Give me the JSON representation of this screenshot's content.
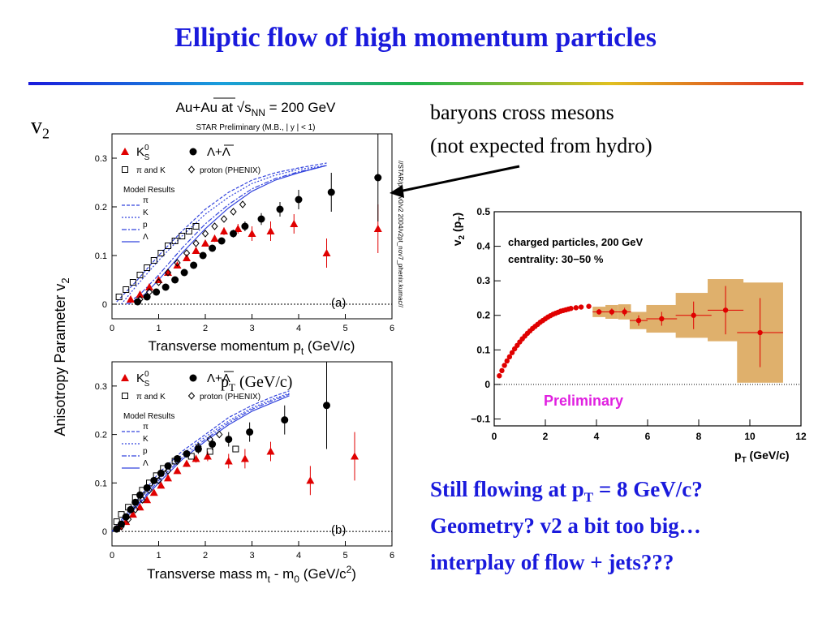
{
  "slide": {
    "title": "Elliptic flow of high momentum particles",
    "v2_label": "v",
    "v2_sub": "2",
    "note_line1": "baryons cross mesons",
    "note_line2": "(not expected from hydro)",
    "pt_label_main": "p",
    "pt_label_sub": "T",
    "pt_label_unit": " (GeV/c)",
    "bottom_line1_a": "Still flowing at p",
    "bottom_line1_sub": "T",
    "bottom_line1_b": " = 8 GeV/c?",
    "bottom_line2": "Geometry? v2 a bit too big…",
    "bottom_line3": "interplay of flow + jets???",
    "colors": {
      "title": "#1a1adc",
      "bottom_text": "#1a1adc"
    }
  },
  "chart_data": [
    {
      "type": "scatter",
      "panel": "(a)",
      "title": "Au+Au at √s",
      "title_sub": "NN",
      "title_tail": " = 200 GeV",
      "subtitle": "STAR Preliminary (M.B., | y | < 1)",
      "xlabel": "Transverse momentum p",
      "xlabel_sub": "t",
      "xlabel_tail": " (GeV/c)",
      "ylabel": "Anisotropy Parameter v",
      "ylabel_sub": "2",
      "xlim": [
        0,
        6
      ],
      "ylim": [
        -0.03,
        0.35
      ],
      "xticks": [
        0,
        1,
        2,
        3,
        4,
        5,
        6
      ],
      "yticks": [
        0,
        0.1,
        0.2,
        0.3
      ],
      "side_label": "//STAR/pwg/v0/v2 2004/v2pt_nov7_phenix.kumac//",
      "legend": {
        "k0s": "K",
        "k0s_sup": "0",
        "k0s_sub": "S",
        "lambda": "Λ+Λ",
        "pik": "π and K",
        "proton": "proton (PHENIX)",
        "model_title": "Model Results",
        "models": [
          "π",
          "K",
          "p",
          "Λ"
        ]
      },
      "series": [
        {
          "name": "K",
          "marker": "triangle",
          "color": "#e00000",
          "x": [
            0.4,
            0.6,
            0.8,
            1.0,
            1.2,
            1.4,
            1.6,
            1.8,
            2.0,
            2.2,
            2.4,
            2.7,
            3.0,
            3.4,
            3.9,
            4.6,
            5.7
          ],
          "y": [
            0.01,
            0.02,
            0.035,
            0.05,
            0.065,
            0.08,
            0.095,
            0.11,
            0.125,
            0.135,
            0.15,
            0.155,
            0.145,
            0.15,
            0.165,
            0.105,
            0.155
          ],
          "err": [
            0.003,
            0.003,
            0.003,
            0.004,
            0.004,
            0.004,
            0.005,
            0.005,
            0.006,
            0.007,
            0.008,
            0.01,
            0.015,
            0.02,
            0.02,
            0.03,
            0.05
          ]
        },
        {
          "name": "Λ+Λ",
          "marker": "circle",
          "color": "#000000",
          "x": [
            0.55,
            0.75,
            0.95,
            1.15,
            1.35,
            1.55,
            1.75,
            1.95,
            2.15,
            2.35,
            2.6,
            2.85,
            3.2,
            3.6,
            4.0,
            4.7,
            5.7
          ],
          "y": [
            0.005,
            0.015,
            0.025,
            0.035,
            0.05,
            0.065,
            0.08,
            0.1,
            0.115,
            0.13,
            0.145,
            0.16,
            0.175,
            0.195,
            0.215,
            0.23,
            0.26
          ],
          "err": [
            0.003,
            0.003,
            0.003,
            0.004,
            0.004,
            0.004,
            0.005,
            0.005,
            0.006,
            0.007,
            0.008,
            0.01,
            0.012,
            0.015,
            0.02,
            0.04,
            0.09
          ]
        },
        {
          "name": "π and K",
          "marker": "open-square",
          "color": "#000000",
          "x": [
            0.15,
            0.3,
            0.45,
            0.6,
            0.75,
            0.9,
            1.05,
            1.2,
            1.35,
            1.5,
            1.65,
            1.8
          ],
          "y": [
            0.015,
            0.03,
            0.045,
            0.06,
            0.075,
            0.09,
            0.105,
            0.12,
            0.13,
            0.14,
            0.15,
            0.16
          ]
        },
        {
          "name": "proton (PHENIX)",
          "marker": "open-diamond",
          "color": "#000000",
          "x": [
            0.6,
            0.8,
            1.0,
            1.2,
            1.4,
            1.6,
            1.8,
            2.0,
            2.2,
            2.4,
            2.6,
            2.8
          ],
          "y": [
            0.01,
            0.025,
            0.045,
            0.065,
            0.085,
            0.105,
            0.125,
            0.145,
            0.16,
            0.175,
            0.19,
            0.205
          ]
        }
      ],
      "model_curves": [
        {
          "name": "π",
          "x": [
            0.1,
            0.5,
            1,
            1.5,
            2,
            2.5,
            3,
            3.5,
            4,
            4.6
          ],
          "y": [
            0.005,
            0.045,
            0.1,
            0.15,
            0.195,
            0.23,
            0.255,
            0.27,
            0.28,
            0.29
          ]
        },
        {
          "name": "K",
          "x": [
            0.2,
            0.5,
            1,
            1.5,
            2,
            2.5,
            3,
            3.5,
            4,
            4.6
          ],
          "y": [
            0.0,
            0.035,
            0.09,
            0.14,
            0.185,
            0.22,
            0.248,
            0.265,
            0.277,
            0.285
          ]
        },
        {
          "name": "p",
          "x": [
            0.3,
            0.6,
            1,
            1.5,
            2,
            2.5,
            3,
            3.5,
            4,
            4.6
          ],
          "y": [
            0.0,
            0.02,
            0.06,
            0.115,
            0.165,
            0.205,
            0.237,
            0.258,
            0.272,
            0.285
          ]
        },
        {
          "name": "Λ",
          "x": [
            0.35,
            0.7,
            1,
            1.5,
            2,
            2.5,
            3,
            3.5,
            4,
            4.6
          ],
          "y": [
            0.0,
            0.02,
            0.05,
            0.105,
            0.155,
            0.198,
            0.232,
            0.255,
            0.27,
            0.285
          ]
        }
      ]
    },
    {
      "type": "scatter",
      "panel": "(b)",
      "xlabel": "Transverse mass m",
      "xlabel_sub": "t",
      "xlabel_mid": " - m",
      "xlabel_sub2": "0",
      "xlabel_tail": " (GeV/c",
      "xlabel_sup": "2",
      "xlabel_end": ")",
      "xlim": [
        0,
        6
      ],
      "ylim": [
        -0.03,
        0.35
      ],
      "xticks": [
        0,
        1,
        2,
        3,
        4,
        5,
        6
      ],
      "yticks": [
        0,
        0.1,
        0.2,
        0.3
      ],
      "legend": {
        "k0s": "K",
        "k0s_sup": "0",
        "k0s_sub": "S",
        "lambda": "Λ+Λ",
        "pik": "π and K",
        "proton": "proton (PHENIX)",
        "model_title": "Model Results",
        "models": [
          "π",
          "K",
          "p",
          "Λ"
        ]
      },
      "series": [
        {
          "name": "K",
          "marker": "triangle",
          "color": "#e00000",
          "x": [
            0.15,
            0.3,
            0.45,
            0.6,
            0.75,
            0.9,
            1.05,
            1.2,
            1.4,
            1.6,
            1.8,
            2.05,
            2.5,
            2.85,
            3.4,
            4.25,
            5.2
          ],
          "y": [
            0.01,
            0.02,
            0.035,
            0.05,
            0.065,
            0.08,
            0.095,
            0.11,
            0.125,
            0.14,
            0.15,
            0.155,
            0.145,
            0.15,
            0.165,
            0.105,
            0.155
          ],
          "err": [
            0.003,
            0.003,
            0.003,
            0.004,
            0.004,
            0.004,
            0.005,
            0.005,
            0.006,
            0.007,
            0.008,
            0.01,
            0.015,
            0.02,
            0.02,
            0.03,
            0.05
          ]
        },
        {
          "name": "Λ+Λ",
          "marker": "circle",
          "color": "#000000",
          "x": [
            0.1,
            0.2,
            0.3,
            0.4,
            0.5,
            0.6,
            0.75,
            0.9,
            1.05,
            1.2,
            1.4,
            1.6,
            1.85,
            2.15,
            2.5,
            2.95,
            3.7,
            4.6
          ],
          "y": [
            0.005,
            0.015,
            0.03,
            0.045,
            0.06,
            0.075,
            0.09,
            0.105,
            0.12,
            0.135,
            0.15,
            0.16,
            0.17,
            0.18,
            0.19,
            0.205,
            0.23,
            0.26
          ],
          "err": [
            0.003,
            0.003,
            0.003,
            0.004,
            0.004,
            0.004,
            0.005,
            0.005,
            0.006,
            0.006,
            0.007,
            0.008,
            0.01,
            0.012,
            0.015,
            0.02,
            0.03,
            0.09
          ]
        },
        {
          "name": "π and K",
          "marker": "open-square",
          "color": "#000000",
          "x": [
            0.1,
            0.2,
            0.35,
            0.5,
            0.65,
            0.8,
            0.95,
            1.1,
            1.35,
            1.7,
            2.1,
            2.65
          ],
          "y": [
            0.02,
            0.035,
            0.05,
            0.07,
            0.085,
            0.1,
            0.115,
            0.13,
            0.145,
            0.155,
            0.165,
            0.17
          ]
        },
        {
          "name": "proton (PHENIX)",
          "marker": "open-diamond",
          "color": "#000000",
          "x": [
            0.2,
            0.35,
            0.5,
            0.65,
            0.8,
            1.0,
            1.2,
            1.4,
            1.6,
            1.85,
            2.1,
            2.3
          ],
          "y": [
            0.01,
            0.025,
            0.045,
            0.065,
            0.085,
            0.105,
            0.125,
            0.145,
            0.16,
            0.175,
            0.19,
            0.2
          ]
        }
      ],
      "model_curves": [
        {
          "name": "π",
          "x": [
            0,
            0.5,
            1,
            1.5,
            2,
            2.5,
            3,
            3.5,
            3.8
          ],
          "y": [
            0.0,
            0.06,
            0.12,
            0.165,
            0.2,
            0.235,
            0.26,
            0.28,
            0.29
          ]
        },
        {
          "name": "K",
          "x": [
            0,
            0.5,
            1,
            1.5,
            2,
            2.5,
            3,
            3.5,
            3.8
          ],
          "y": [
            0.0,
            0.055,
            0.11,
            0.158,
            0.195,
            0.228,
            0.255,
            0.275,
            0.285
          ]
        },
        {
          "name": "p",
          "x": [
            0,
            0.5,
            1,
            1.5,
            2,
            2.5,
            3,
            3.5,
            3.8
          ],
          "y": [
            0.0,
            0.05,
            0.105,
            0.152,
            0.19,
            0.224,
            0.252,
            0.272,
            0.283
          ]
        },
        {
          "name": "Λ",
          "x": [
            0,
            0.5,
            1,
            1.5,
            2,
            2.5,
            3,
            3.5,
            3.8
          ],
          "y": [
            0.0,
            0.048,
            0.1,
            0.148,
            0.186,
            0.22,
            0.248,
            0.268,
            0.28
          ]
        }
      ]
    },
    {
      "type": "scatter",
      "title": "charged particles, 200 GeV",
      "subtitle": "centrality: 30−50 %",
      "annotation": "Preliminary",
      "annotation_color": "#e020e0",
      "xlabel": "p",
      "xlabel_sub": "T",
      "xlabel_tail": " (GeV/c)",
      "ylabel": "v",
      "ylabel_sub": "2",
      "ylabel_tail": " (p",
      "ylabel_sub2": "T",
      "ylabel_end": ")",
      "xlim": [
        0,
        12
      ],
      "ylim": [
        -0.12,
        0.5
      ],
      "xticks": [
        0,
        2,
        4,
        6,
        8,
        10,
        12
      ],
      "yticks": [
        -0.1,
        0,
        0.1,
        0.2,
        0.3,
        0.4,
        0.5
      ],
      "ytick_labels": [
        "−0.1",
        "0",
        "0.1",
        "0.2",
        "0.3",
        "0.4",
        "0.5"
      ],
      "series": [
        {
          "name": "",
          "marker": "circle",
          "color": "#e00000",
          "x": [
            0.2,
            0.3,
            0.4,
            0.5,
            0.6,
            0.7,
            0.8,
            0.9,
            1.0,
            1.1,
            1.2,
            1.3,
            1.4,
            1.5,
            1.6,
            1.7,
            1.8,
            1.9,
            2.0,
            2.1,
            2.2,
            2.3,
            2.4,
            2.5,
            2.6,
            2.7,
            2.8,
            2.9,
            3.0,
            3.2,
            3.4,
            3.7,
            4.1,
            4.6,
            5.1,
            5.65,
            6.55,
            7.8,
            9.05,
            10.4
          ],
          "y": [
            0.025,
            0.04,
            0.055,
            0.068,
            0.08,
            0.092,
            0.103,
            0.113,
            0.123,
            0.132,
            0.14,
            0.148,
            0.155,
            0.162,
            0.168,
            0.174,
            0.18,
            0.185,
            0.19,
            0.195,
            0.199,
            0.203,
            0.206,
            0.209,
            0.212,
            0.214,
            0.216,
            0.218,
            0.22,
            0.222,
            0.224,
            0.226,
            0.21,
            0.21,
            0.21,
            0.185,
            0.19,
            0.2,
            0.215,
            0.15
          ],
          "xerr": [
            0,
            0,
            0,
            0,
            0,
            0,
            0,
            0,
            0,
            0,
            0,
            0,
            0,
            0,
            0,
            0,
            0,
            0,
            0,
            0,
            0,
            0,
            0,
            0,
            0,
            0,
            0,
            0,
            0,
            0,
            0,
            0,
            0.25,
            0.25,
            0.25,
            0.35,
            0.6,
            0.7,
            0.7,
            0.9
          ],
          "err": [
            0.003,
            0.003,
            0.003,
            0.003,
            0.003,
            0.003,
            0.003,
            0.003,
            0.003,
            0.003,
            0.003,
            0.003,
            0.003,
            0.003,
            0.003,
            0.003,
            0.003,
            0.003,
            0.003,
            0.003,
            0.003,
            0.003,
            0.003,
            0.003,
            0.003,
            0.003,
            0.003,
            0.003,
            0.003,
            0.004,
            0.005,
            0.007,
            0.008,
            0.01,
            0.012,
            0.015,
            0.02,
            0.04,
            0.07,
            0.1
          ],
          "sys": [
            0,
            0,
            0,
            0,
            0,
            0,
            0,
            0,
            0,
            0,
            0,
            0,
            0,
            0,
            0,
            0,
            0,
            0,
            0,
            0,
            0,
            0,
            0,
            0,
            0,
            0,
            0,
            0,
            0,
            0,
            0,
            0,
            0.015,
            0.02,
            0.022,
            0.025,
            0.04,
            0.065,
            0.09,
            0.145
          ]
        }
      ]
    }
  ]
}
